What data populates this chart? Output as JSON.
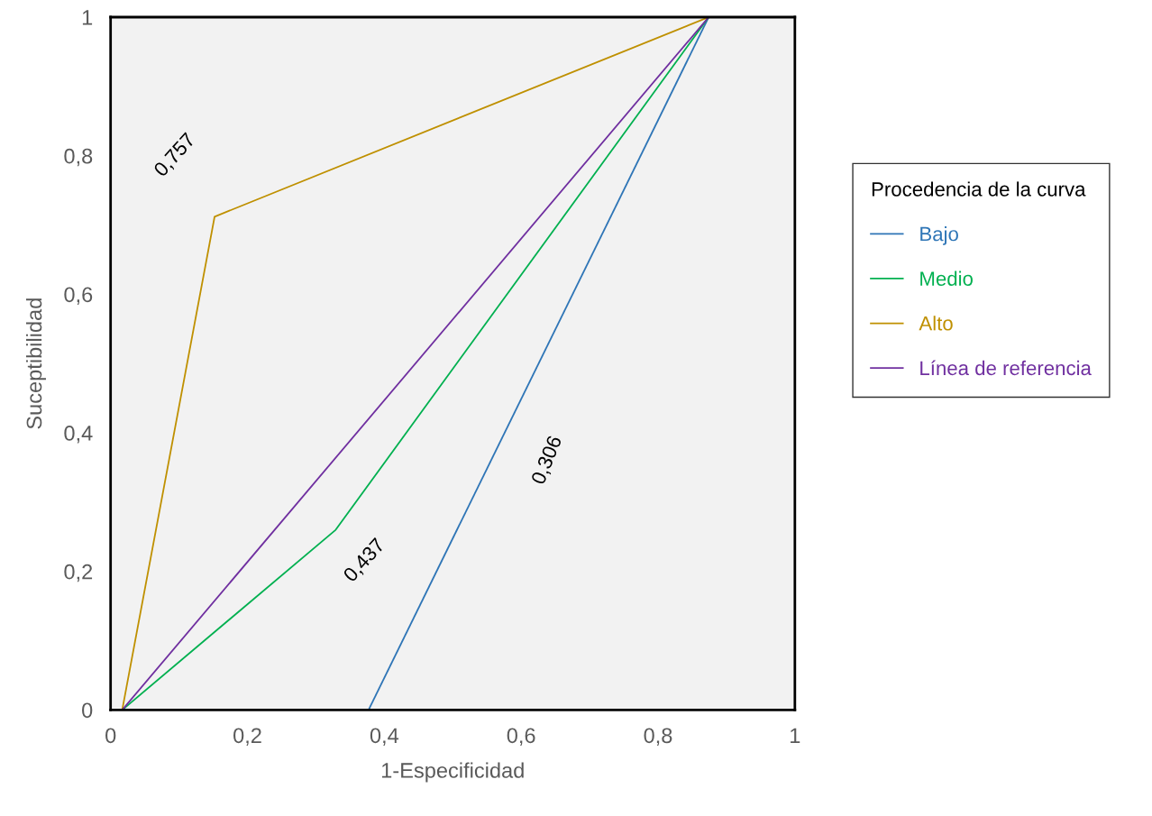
{
  "chart_data": {
    "type": "line",
    "xlabel": "1-Especificidad",
    "ylabel": "Suceptibilidad",
    "legend_title": "Procedencia de la curva",
    "series": [
      {
        "name": "Bajo",
        "color": "#2e75b6",
        "x": [
          0.377,
          0.874
        ],
        "values": [
          0,
          1
        ]
      },
      {
        "name": "Medio",
        "color": "#00b050",
        "x": [
          0.017,
          0.329,
          0.874
        ],
        "values": [
          0,
          0.26,
          1
        ]
      },
      {
        "name": "Alto",
        "color": "#bf9000",
        "x": [
          0.017,
          0.152,
          0.874
        ],
        "values": [
          0,
          0.712,
          1
        ]
      },
      {
        "name": "Línea de referencia",
        "color": "#7030a0",
        "x": [
          0.017,
          0.874
        ],
        "values": [
          0,
          1
        ]
      }
    ],
    "annotations": [
      "0,757",
      "0,437",
      "0,306"
    ],
    "xlim": [
      0,
      1
    ],
    "ylim": [
      0,
      1
    ],
    "xticks": [
      0,
      {
        "value": 0.2,
        "label": "0,2"
      },
      {
        "value": 0.4,
        "label": "0,4"
      },
      {
        "value": 0.6,
        "label": "0,6"
      },
      {
        "value": 0.8,
        "label": "0,8"
      },
      1
    ],
    "yticks": [
      0,
      {
        "value": 0.2,
        "label": "0,2"
      },
      {
        "value": 0.4,
        "label": "0,4"
      },
      {
        "value": 0.6,
        "label": "0,6"
      },
      {
        "value": 0.8,
        "label": "0,8"
      },
      1
    ],
    "legend": "right",
    "grid": false
  }
}
